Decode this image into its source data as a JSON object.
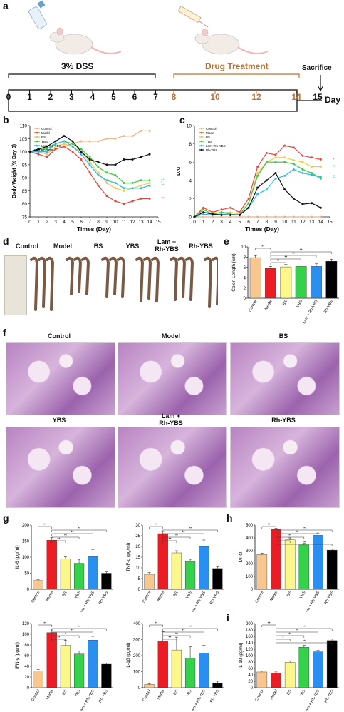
{
  "figure": {
    "panel_labels": {
      "a": "a",
      "b": "b",
      "c": "c",
      "d": "d",
      "e": "e",
      "f": "f",
      "g": "g",
      "h": "h",
      "i": "i"
    },
    "groups": [
      "Control",
      "Model",
      "BS",
      "YBS",
      "Lam + Rh-YBS",
      "Rh-YBS"
    ],
    "group_colors": [
      "#f9c78d",
      "#ec1c24",
      "#fbf78a",
      "#34d24a",
      "#2a8ff0",
      "#000000"
    ],
    "line_colors": [
      "#f4b183",
      "#e8433a",
      "#f2c84b",
      "#3cc83c",
      "#29b6f6",
      "#111111"
    ]
  },
  "timeline": {
    "dss_label": "3% DSS",
    "drug_label": "Drug Treatment",
    "sacrifice_label": "Sacrifice",
    "day_label": "Day",
    "ticks": [
      "0",
      "1",
      "2",
      "3",
      "4",
      "5",
      "6",
      "7"
    ],
    "drug_ticks": [
      "8",
      "10",
      "12",
      "14"
    ],
    "end_tick": "15"
  },
  "panel_d": {
    "labels": [
      "Control",
      "Model",
      "BS",
      "YBS",
      "Lam +\nRh-YBS",
      "Rh-YBS"
    ]
  },
  "panel_f": {
    "titles": [
      "Control",
      "Model",
      "BS",
      "YBS",
      "Lam +\nRh-YBS",
      "Rh-YBS"
    ]
  },
  "chart_data": [
    {
      "id": "b",
      "type": "line",
      "xlabel": "Times (Day)",
      "ylabel": "Body Weight (% Day 0)",
      "x": [
        0,
        1,
        2,
        3,
        4,
        5,
        6,
        7,
        8,
        9,
        10,
        11,
        12,
        13,
        14
      ],
      "ylim": [
        75,
        110
      ],
      "yticks": [
        75,
        80,
        85,
        90,
        95,
        100,
        105,
        110
      ],
      "xticks": [
        0,
        1,
        2,
        3,
        4,
        5,
        6,
        7,
        8,
        9,
        10,
        11,
        12,
        13,
        14,
        15
      ],
      "legend": "top-left",
      "series": [
        {
          "name": "Control",
          "values": [
            100,
            101,
            100,
            101,
            102,
            103,
            104,
            104,
            104,
            105,
            105,
            106,
            106,
            108,
            108
          ]
        },
        {
          "name": "Model",
          "values": [
            100,
            99,
            98,
            101,
            102,
            100,
            97,
            92,
            87,
            83,
            81,
            80,
            81,
            82,
            82
          ]
        },
        {
          "name": "BS",
          "values": [
            100,
            100,
            99,
            102,
            103,
            102,
            100,
            96,
            92,
            88,
            86,
            85,
            86,
            87,
            88
          ]
        },
        {
          "name": "YBS",
          "values": [
            100,
            101,
            101,
            103,
            104,
            103,
            101,
            98,
            94,
            92,
            91,
            88,
            88,
            89,
            89
          ]
        },
        {
          "name": "Lam+Rh-YBS",
          "values": [
            100,
            100,
            100,
            103,
            104,
            102,
            99,
            95,
            91,
            89,
            88,
            86,
            86,
            86,
            87
          ]
        },
        {
          "name": "Rh-YBS",
          "values": [
            100,
            101,
            102,
            104,
            106,
            104,
            100,
            97,
            96,
            95,
            95,
            97,
            97,
            98,
            99
          ]
        }
      ],
      "annotations": [
        "*",
        "**",
        "**",
        "**"
      ]
    },
    {
      "id": "c",
      "type": "line",
      "xlabel": "Times (Day)",
      "ylabel": "DAI",
      "x": [
        0,
        1,
        2,
        3,
        4,
        5,
        6,
        7,
        8,
        9,
        10,
        11,
        12,
        13,
        14
      ],
      "ylim": [
        0,
        10
      ],
      "yticks": [
        0,
        2,
        4,
        6,
        8,
        10
      ],
      "xticks": [
        0,
        1,
        2,
        3,
        4,
        5,
        6,
        7,
        8,
        9,
        10,
        11,
        12,
        13,
        14,
        15
      ],
      "legend": "top-left",
      "series": [
        {
          "name": "Control",
          "values": [
            0,
            0,
            0,
            0,
            0,
            0,
            0,
            0,
            0,
            0,
            0,
            0,
            0,
            0,
            0
          ]
        },
        {
          "name": "Model",
          "values": [
            0,
            1,
            0.5,
            0.8,
            1,
            0.5,
            2,
            5.5,
            7,
            6.8,
            7.8,
            7.6,
            6.7,
            6.5,
            6.3
          ]
        },
        {
          "name": "BS",
          "values": [
            0,
            0.5,
            0.4,
            0.5,
            0.5,
            0.3,
            1.5,
            4.8,
            6,
            6.5,
            6.5,
            6.2,
            6.0,
            5.5,
            5.5
          ]
        },
        {
          "name": "YBS",
          "values": [
            0,
            0.8,
            0.3,
            0.5,
            0.3,
            0.2,
            1.5,
            4.5,
            6,
            6,
            6,
            5.8,
            5.2,
            4.8,
            4.2
          ]
        },
        {
          "name": "Lam+Rh-YBS",
          "values": [
            0,
            0.3,
            0.2,
            0.3,
            0.2,
            0.2,
            1.0,
            2.5,
            3,
            4.2,
            4.5,
            5.2,
            4.8,
            4.6,
            4.4
          ]
        },
        {
          "name": "Rh-YBS",
          "values": [
            0,
            0.5,
            0.3,
            0.2,
            0.2,
            0.2,
            1.0,
            3.2,
            4,
            4.8,
            3,
            2,
            1.4,
            1.5,
            1.0
          ]
        }
      ],
      "annotations": [
        "**",
        "**",
        "**",
        "*"
      ]
    },
    {
      "id": "e",
      "type": "bar",
      "ylabel": "Colon Length (cm)",
      "categories": [
        "Control",
        "Model",
        "BS",
        "YBS",
        "Lam + Rh-YBS",
        "Rh-YBS"
      ],
      "values": [
        7.9,
        5.8,
        6.1,
        6.2,
        6.2,
        7.2
      ],
      "errors": [
        0.4,
        0.4,
        0.5,
        1.2,
        0.5,
        0.4
      ],
      "ylim": [
        0,
        10
      ],
      "yticks": [
        0,
        2,
        4,
        6,
        8,
        10
      ],
      "sig": [
        "**",
        "**",
        "**",
        "**",
        "**"
      ]
    },
    {
      "id": "g1",
      "type": "bar",
      "ylabel": "IL-6 (pg/ml)",
      "categories": [
        "Control",
        "Model",
        "BS",
        "YBS",
        "Lam + Rh-YBS",
        "Rh-YBS"
      ],
      "values": [
        27,
        153,
        95,
        81,
        102,
        50
      ],
      "errors": [
        3,
        8,
        6,
        12,
        22,
        4
      ],
      "ylim": [
        0,
        200
      ],
      "yticks": [
        0,
        50,
        100,
        150,
        200
      ],
      "sig": [
        "**",
        "**",
        "**",
        "**",
        "**"
      ]
    },
    {
      "id": "g2",
      "type": "bar",
      "ylabel": "TNF-α (pg/ml)",
      "categories": [
        "Control",
        "Model",
        "BS",
        "YBS",
        "Lam + Rh-YBS",
        "Rh-YBS"
      ],
      "values": [
        7,
        26,
        17,
        13,
        20,
        9.7
      ],
      "errors": [
        0.8,
        1,
        1,
        1,
        3,
        0.8
      ],
      "ylim": [
        0,
        30
      ],
      "yticks": [
        0,
        5,
        10,
        15,
        20,
        25,
        30
      ],
      "sig": [
        "**",
        "**",
        "**",
        "**",
        "**"
      ]
    },
    {
      "id": "h",
      "type": "bar",
      "ylabel": "MPO",
      "categories": [
        "Control",
        "Model",
        "BS",
        "YBS",
        "Lam + Rh-YBS",
        "Rh-YBS"
      ],
      "values": [
        270,
        465,
        385,
        345,
        420,
        305
      ],
      "errors": [
        12,
        10,
        15,
        12,
        18,
        10
      ],
      "ylim": [
        0,
        500
      ],
      "yticks": [
        0,
        100,
        200,
        300,
        400,
        500
      ],
      "sig": [
        "**",
        "**",
        "**",
        "**",
        "*",
        "**"
      ]
    },
    {
      "id": "g3",
      "type": "bar",
      "ylabel": "IFN-γ (pg/ml)",
      "categories": [
        "Control",
        "Model",
        "BS",
        "YBS",
        "Lam + Rh-YBS",
        "Rh-YBS"
      ],
      "values": [
        31,
        103,
        79,
        63,
        89,
        44
      ],
      "errors": [
        3,
        5,
        10,
        6,
        7,
        2
      ],
      "ylim": [
        0,
        120
      ],
      "yticks": [
        0,
        20,
        40,
        60,
        80,
        100,
        120
      ],
      "sig": [
        "**",
        "**",
        "**",
        "*",
        "**"
      ]
    },
    {
      "id": "g4",
      "type": "bar",
      "ylabel": "IL-1β (pg/ml)",
      "categories": [
        "Control",
        "Model",
        "BS",
        "YBS",
        "Lam + Rh-YBS",
        "Rh-YBS"
      ],
      "values": [
        20,
        290,
        235,
        185,
        215,
        30
      ],
      "errors": [
        5,
        60,
        80,
        70,
        50,
        10
      ],
      "ylim": [
        0,
        400
      ],
      "yticks": [
        0,
        100,
        200,
        300,
        400
      ],
      "sig": [
        "**",
        "**",
        "**",
        "**",
        "**"
      ]
    },
    {
      "id": "i",
      "type": "bar",
      "ylabel": "IL-10 (pg/ml)",
      "categories": [
        "Control",
        "Model",
        "BS",
        "YBS",
        "Lam + Rh-YBS",
        "Rh-YBS"
      ],
      "values": [
        49,
        46,
        79,
        126,
        112,
        147
      ],
      "errors": [
        3,
        3,
        5,
        6,
        5,
        5
      ],
      "ylim": [
        0,
        200
      ],
      "yticks": [
        0,
        20,
        40,
        60,
        80,
        100,
        120,
        140,
        160,
        180,
        200
      ],
      "sig": [
        "**",
        "**",
        "**",
        "**",
        "*",
        "**"
      ]
    }
  ]
}
